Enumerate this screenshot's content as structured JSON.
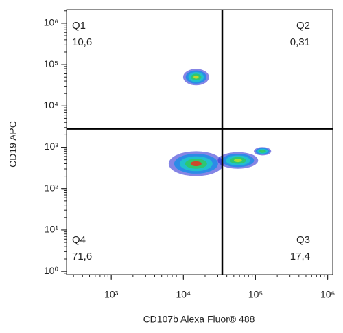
{
  "chart_data": {
    "type": "quadrant-density",
    "x_label": "CD107b Alexa Fluor® 488",
    "y_label": "CD19 APC",
    "xscale": "log",
    "yscale": "log",
    "xlim": [
      240,
      1175000
    ],
    "ylim": [
      0.83,
      2140000
    ],
    "xticks": [
      {
        "value": 1000,
        "label": "10³"
      },
      {
        "value": 10000,
        "label": "10⁴"
      },
      {
        "value": 100000,
        "label": "10⁵"
      },
      {
        "value": 1000000,
        "label": "10⁶"
      }
    ],
    "yticks": [
      {
        "value": 1,
        "label": "10⁰"
      },
      {
        "value": 10,
        "label": "10¹"
      },
      {
        "value": 100,
        "label": "10²"
      },
      {
        "value": 1000,
        "label": "10³"
      },
      {
        "value": 10000,
        "label": "10⁴"
      },
      {
        "value": 100000,
        "label": "10⁵"
      },
      {
        "value": 1000000,
        "label": "10⁶"
      }
    ],
    "xgate": 34600,
    "ygate": 2800,
    "quadrants": [
      {
        "name": "Q1",
        "value": 10.6,
        "label": "10,6",
        "corner": "top-left"
      },
      {
        "name": "Q2",
        "value": 0.31,
        "label": "0,31",
        "corner": "top-right"
      },
      {
        "name": "Q3",
        "value": 17.4,
        "label": "17,4",
        "corner": "bottom-right"
      },
      {
        "name": "Q4",
        "value": 71.6,
        "label": "71,6",
        "corner": "bottom-left"
      }
    ],
    "clusters": [
      {
        "x": 15000,
        "y": 400,
        "sx": 0.38,
        "sy": 0.3,
        "color": "#e8321e"
      },
      {
        "x": 57000,
        "y": 480,
        "sx": 0.28,
        "sy": 0.2,
        "color": "#b8e02a"
      },
      {
        "x": 125000,
        "y": 800,
        "sx": 0.12,
        "sy": 0.1,
        "color": "#38c86a"
      },
      {
        "x": 15000,
        "y": 50000,
        "sx": 0.18,
        "sy": 0.2,
        "color": "#e0d820"
      }
    ]
  }
}
